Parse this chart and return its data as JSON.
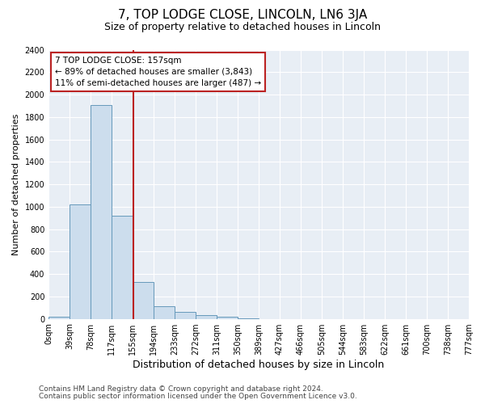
{
  "title": "7, TOP LODGE CLOSE, LINCOLN, LN6 3JA",
  "subtitle": "Size of property relative to detached houses in Lincoln",
  "xlabel": "Distribution of detached houses by size in Lincoln",
  "ylabel": "Number of detached properties",
  "bar_color": "#ccdded",
  "bar_edge_color": "#6699bb",
  "fig_background_color": "#ffffff",
  "axes_background_color": "#e8eef5",
  "grid_color": "#ffffff",
  "grid_linewidth": 0.8,
  "vline_value": 157,
  "vline_color": "#bb2222",
  "bin_edges": [
    0,
    39,
    78,
    117,
    155,
    194,
    233,
    272,
    311,
    350,
    389,
    427,
    466,
    505,
    544,
    583,
    622,
    661,
    700,
    738,
    777
  ],
  "bin_labels": [
    "0sqm",
    "39sqm",
    "78sqm",
    "117sqm",
    "155sqm",
    "194sqm",
    "233sqm",
    "272sqm",
    "311sqm",
    "350sqm",
    "389sqm",
    "427sqm",
    "466sqm",
    "505sqm",
    "544sqm",
    "583sqm",
    "622sqm",
    "661sqm",
    "700sqm",
    "738sqm",
    "777sqm"
  ],
  "counts": [
    20,
    1020,
    1910,
    920,
    325,
    110,
    60,
    30,
    20,
    5,
    0,
    0,
    0,
    0,
    0,
    0,
    0,
    0,
    0,
    0
  ],
  "ylim": [
    0,
    2400
  ],
  "yticks": [
    0,
    200,
    400,
    600,
    800,
    1000,
    1200,
    1400,
    1600,
    1800,
    2000,
    2200,
    2400
  ],
  "annotation_line1": "7 TOP LODGE CLOSE: 157sqm",
  "annotation_line2": "← 89% of detached houses are smaller (3,843)",
  "annotation_line3": "11% of semi-detached houses are larger (487) →",
  "footer1": "Contains HM Land Registry data © Crown copyright and database right 2024.",
  "footer2": "Contains public sector information licensed under the Open Government Licence v3.0.",
  "title_fontsize": 11,
  "subtitle_fontsize": 9,
  "xlabel_fontsize": 9,
  "ylabel_fontsize": 8,
  "tick_fontsize": 7,
  "annotation_fontsize": 7.5,
  "footer_fontsize": 6.5
}
